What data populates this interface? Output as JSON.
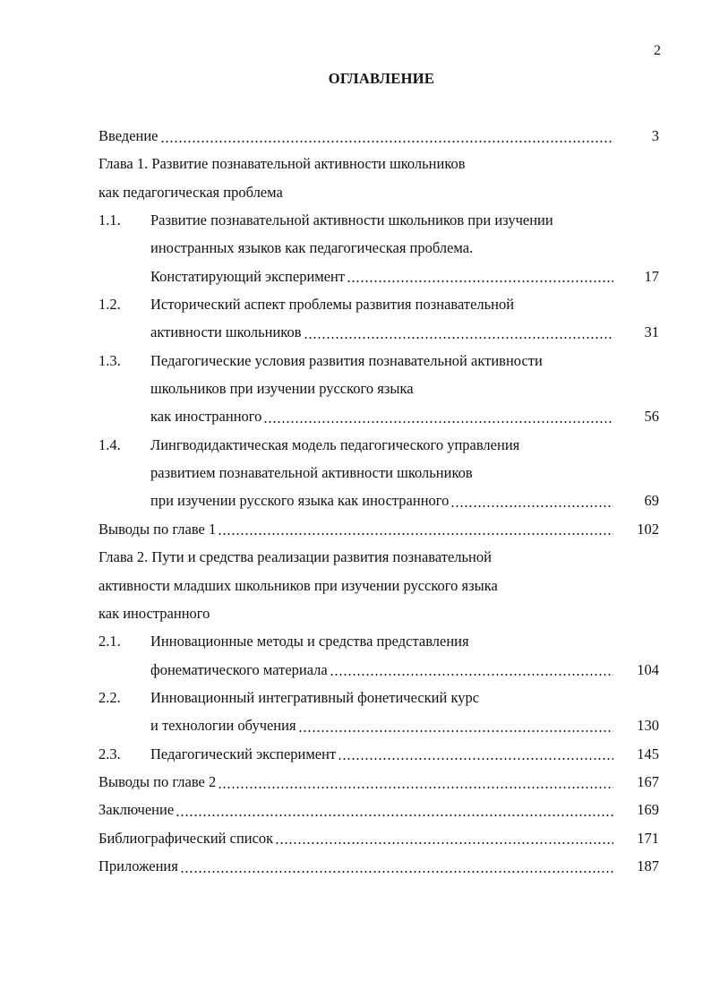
{
  "page_number": "2",
  "title": "ОГЛАВЛЕНИЕ",
  "lines": [
    {
      "num": "",
      "text": "Введение",
      "page": "3"
    },
    {
      "num": "",
      "text": "Глава 1. Развитие познавательной активности школьников",
      "page": ""
    },
    {
      "num": "",
      "text": "как педагогическая проблема",
      "page": ""
    },
    {
      "num": "1.1.",
      "text": "Развитие познавательной активности школьников при изучении",
      "page": "",
      "indent": true
    },
    {
      "num": "",
      "text": "иностранных языков как педагогическая проблема.",
      "page": "",
      "indent": true
    },
    {
      "num": "",
      "text": "Констатирующий эксперимент",
      "page": "17",
      "indent": true
    },
    {
      "num": "1.2.",
      "text": "Исторический аспект проблемы развития познавательной",
      "page": "",
      "indent": true
    },
    {
      "num": "",
      "text": "активности школьников",
      "page": "31",
      "indent": true
    },
    {
      "num": "1.3.",
      "text": "Педагогические условия развития познавательной активности",
      "page": "",
      "indent": true
    },
    {
      "num": "",
      "text": "школьников при изучении русского языка",
      "page": "",
      "indent": true
    },
    {
      "num": "",
      "text": "как иностранного",
      "page": "56",
      "indent": true
    },
    {
      "num": "1.4.",
      "text": "Лингводидактическая модель педагогического управления",
      "page": "",
      "indent": true
    },
    {
      "num": "",
      "text": "развитием познавательной активности школьников",
      "page": "",
      "indent": true
    },
    {
      "num": "",
      "text": "при изучении русского языка как иностранного",
      "page": "69",
      "indent": true
    },
    {
      "num": "",
      "text": "Выводы по главе 1",
      "page": "102"
    },
    {
      "num": "",
      "text": "Глава 2. Пути и средства реализации развития познавательной",
      "page": ""
    },
    {
      "num": "",
      "text": "активности младших школьников при изучении русского языка",
      "page": ""
    },
    {
      "num": "",
      "text": "как иностранного",
      "page": ""
    },
    {
      "num": "2.1.",
      "text": "Инновационные методы и  средства представления",
      "page": "",
      "indent": true
    },
    {
      "num": "",
      "text": "фонематического материала",
      "page": "104",
      "indent": true
    },
    {
      "num": "2.2.",
      "text": "Инновационный интегративный фонетический курс",
      "page": "",
      "indent": true
    },
    {
      "num": "",
      "text": "и технологии обучения",
      "page": "130",
      "indent": true
    },
    {
      "num": "2.3.",
      "text": "Педагогический эксперимент",
      "page": "145",
      "indent": true
    },
    {
      "num": "",
      "text": "Выводы по главе 2",
      "page": "167"
    },
    {
      "num": "",
      "text": "Заключение",
      "page": "169"
    },
    {
      "num": "",
      "text": "Библиографический список",
      "page": "171"
    },
    {
      "num": "",
      "text": "Приложения",
      "page": "187"
    }
  ]
}
